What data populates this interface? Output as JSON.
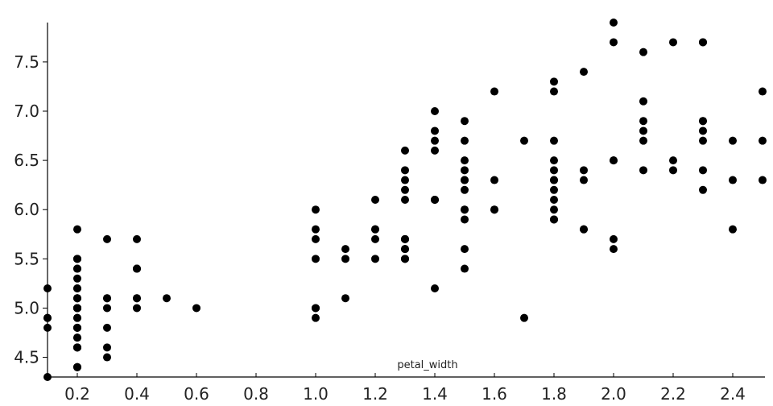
{
  "chart_data": {
    "type": "scatter",
    "xlabel": "petal_width",
    "ylabel": "",
    "xlim": [
      0.1,
      2.5
    ],
    "ylim": [
      4.3,
      7.9
    ],
    "grid": false,
    "point_color": "#000000",
    "x_ticks": [
      "0.2",
      "0.4",
      "0.6",
      "0.8",
      "1.0",
      "1.2",
      "1.4",
      "1.6",
      "1.8",
      "2.0",
      "2.2",
      "2.4"
    ],
    "y_ticks": [
      "4.5",
      "5.0",
      "5.5",
      "6.0",
      "6.5",
      "7.0",
      "7.5"
    ],
    "points": [
      [
        0.2,
        5.1
      ],
      [
        0.2,
        4.9
      ],
      [
        0.2,
        4.7
      ],
      [
        0.2,
        4.6
      ],
      [
        0.2,
        5.0
      ],
      [
        0.4,
        5.4
      ],
      [
        0.3,
        4.6
      ],
      [
        0.2,
        5.0
      ],
      [
        0.2,
        4.4
      ],
      [
        0.1,
        4.9
      ],
      [
        0.2,
        5.4
      ],
      [
        0.2,
        4.8
      ],
      [
        0.1,
        4.8
      ],
      [
        0.1,
        4.3
      ],
      [
        0.2,
        5.8
      ],
      [
        0.4,
        5.7
      ],
      [
        0.4,
        5.4
      ],
      [
        0.3,
        5.1
      ],
      [
        0.3,
        5.7
      ],
      [
        0.3,
        5.1
      ],
      [
        0.2,
        5.4
      ],
      [
        0.4,
        5.1
      ],
      [
        0.2,
        4.6
      ],
      [
        0.5,
        5.1
      ],
      [
        0.2,
        4.8
      ],
      [
        0.2,
        5.0
      ],
      [
        0.4,
        5.0
      ],
      [
        0.2,
        5.2
      ],
      [
        0.2,
        5.2
      ],
      [
        0.2,
        4.7
      ],
      [
        0.2,
        4.8
      ],
      [
        0.4,
        5.4
      ],
      [
        0.1,
        5.2
      ],
      [
        0.2,
        5.5
      ],
      [
        0.2,
        4.9
      ],
      [
        0.2,
        5.0
      ],
      [
        0.2,
        5.5
      ],
      [
        0.1,
        4.9
      ],
      [
        0.2,
        4.4
      ],
      [
        0.2,
        5.1
      ],
      [
        0.3,
        5.0
      ],
      [
        0.3,
        4.5
      ],
      [
        0.2,
        4.4
      ],
      [
        0.6,
        5.0
      ],
      [
        0.4,
        5.1
      ],
      [
        0.3,
        4.8
      ],
      [
        0.2,
        5.1
      ],
      [
        0.2,
        4.6
      ],
      [
        0.2,
        5.3
      ],
      [
        0.2,
        5.0
      ],
      [
        1.4,
        7.0
      ],
      [
        1.5,
        6.4
      ],
      [
        1.5,
        6.9
      ],
      [
        1.3,
        5.5
      ],
      [
        1.5,
        6.5
      ],
      [
        1.3,
        5.7
      ],
      [
        1.6,
        6.3
      ],
      [
        1.0,
        4.9
      ],
      [
        1.3,
        6.6
      ],
      [
        1.4,
        5.2
      ],
      [
        1.0,
        5.0
      ],
      [
        1.5,
        5.9
      ],
      [
        1.0,
        6.0
      ],
      [
        1.4,
        6.1
      ],
      [
        1.3,
        5.6
      ],
      [
        1.4,
        6.7
      ],
      [
        1.5,
        5.6
      ],
      [
        1.0,
        5.8
      ],
      [
        1.5,
        6.2
      ],
      [
        1.1,
        5.6
      ],
      [
        1.8,
        5.9
      ],
      [
        1.3,
        6.1
      ],
      [
        1.5,
        6.3
      ],
      [
        1.2,
        6.1
      ],
      [
        1.3,
        6.4
      ],
      [
        1.4,
        6.6
      ],
      [
        1.4,
        6.8
      ],
      [
        1.7,
        6.7
      ],
      [
        1.5,
        6.0
      ],
      [
        1.0,
        5.7
      ],
      [
        1.1,
        5.5
      ],
      [
        1.0,
        5.5
      ],
      [
        1.2,
        5.8
      ],
      [
        1.6,
        6.0
      ],
      [
        1.5,
        5.4
      ],
      [
        1.6,
        6.0
      ],
      [
        1.5,
        6.7
      ],
      [
        1.3,
        6.3
      ],
      [
        1.3,
        5.6
      ],
      [
        1.3,
        5.5
      ],
      [
        1.2,
        5.5
      ],
      [
        1.4,
        6.1
      ],
      [
        1.2,
        5.8
      ],
      [
        1.0,
        5.0
      ],
      [
        1.3,
        5.6
      ],
      [
        1.2,
        5.7
      ],
      [
        1.3,
        5.7
      ],
      [
        1.3,
        6.2
      ],
      [
        1.1,
        5.1
      ],
      [
        1.3,
        5.7
      ],
      [
        2.5,
        6.3
      ],
      [
        1.9,
        5.8
      ],
      [
        2.1,
        7.1
      ],
      [
        1.8,
        6.3
      ],
      [
        2.2,
        6.5
      ],
      [
        2.1,
        7.6
      ],
      [
        1.7,
        4.9
      ],
      [
        1.8,
        7.3
      ],
      [
        1.8,
        6.7
      ],
      [
        2.5,
        7.2
      ],
      [
        2.0,
        6.5
      ],
      [
        1.9,
        6.4
      ],
      [
        2.1,
        6.8
      ],
      [
        2.0,
        5.7
      ],
      [
        2.4,
        5.8
      ],
      [
        2.3,
        6.4
      ],
      [
        1.8,
        6.5
      ],
      [
        2.2,
        7.7
      ],
      [
        2.3,
        7.7
      ],
      [
        1.5,
        6.0
      ],
      [
        2.3,
        6.9
      ],
      [
        2.0,
        5.6
      ],
      [
        2.0,
        7.7
      ],
      [
        1.8,
        6.3
      ],
      [
        2.1,
        6.7
      ],
      [
        1.8,
        7.2
      ],
      [
        1.8,
        6.2
      ],
      [
        1.8,
        6.1
      ],
      [
        2.1,
        6.4
      ],
      [
        1.6,
        7.2
      ],
      [
        1.9,
        7.4
      ],
      [
        2.0,
        7.9
      ],
      [
        2.2,
        6.4
      ],
      [
        1.5,
        6.3
      ],
      [
        1.4,
        6.1
      ],
      [
        2.3,
        7.7
      ],
      [
        2.4,
        6.3
      ],
      [
        1.8,
        6.4
      ],
      [
        1.8,
        6.0
      ],
      [
        2.1,
        6.9
      ],
      [
        2.4,
        6.7
      ],
      [
        2.3,
        6.9
      ],
      [
        1.9,
        5.8
      ],
      [
        2.3,
        6.8
      ],
      [
        2.5,
        6.7
      ],
      [
        2.3,
        6.7
      ],
      [
        1.9,
        6.3
      ],
      [
        2.0,
        6.5
      ],
      [
        2.3,
        6.2
      ],
      [
        1.8,
        5.9
      ]
    ]
  }
}
